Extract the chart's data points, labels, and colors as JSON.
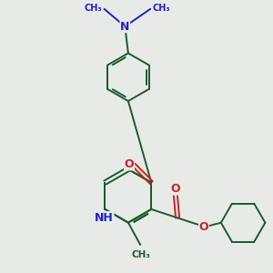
{
  "bg_color": "#e8eae8",
  "bond_color": "#1a5c2a",
  "N_color": "#2020cc",
  "O_color": "#cc2020",
  "line_width": 1.4,
  "font_size_atom": 8.5,
  "figsize": [
    3.0,
    3.0
  ],
  "dpi": 100,
  "xlim": [
    -2.8,
    3.0
  ],
  "ylim": [
    -3.0,
    2.8
  ]
}
